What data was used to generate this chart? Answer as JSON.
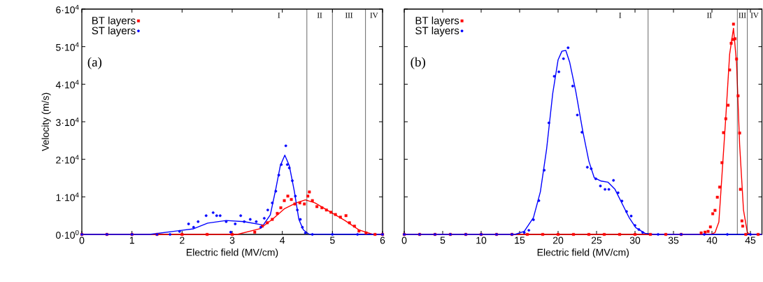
{
  "chart_data": [
    {
      "type": "scatter",
      "xlabel": "Electric field (MV/cm)",
      "ylabel": "Velocity (m/s)",
      "xlim": [
        0,
        6
      ],
      "ylim": [
        0,
        60000
      ],
      "xticks": [
        0,
        1,
        2,
        3,
        4,
        5,
        6
      ],
      "yticks": [
        {
          "value": 0,
          "label": "0·10$^{0}$"
        },
        {
          "value": 10000,
          "label": "1·10$^{4}$"
        },
        {
          "value": 20000,
          "label": "2·10$^{4}$"
        },
        {
          "value": 30000,
          "label": "3·10$^{4}$"
        },
        {
          "value": 40000,
          "label": "4·10$^{4}$"
        },
        {
          "value": 50000,
          "label": "5·10$^{4}$"
        },
        {
          "value": 60000,
          "label": "6·10$^{4}$"
        }
      ],
      "grid": false,
      "legend": "top left",
      "series": [
        {
          "name": "BT layers",
          "color": "#ff0000",
          "marker": "square",
          "x": [
            0,
            0.5,
            1.0,
            1.5,
            2.0,
            2.5,
            3.0,
            3.45,
            3.6,
            3.7,
            3.8,
            3.9,
            3.97,
            4.04,
            4.11,
            4.18,
            4.25,
            4.35,
            4.44,
            4.51,
            4.54,
            4.6,
            4.69,
            4.79,
            4.88,
            4.97,
            5.06,
            5.16,
            5.27,
            5.34,
            5.44,
            5.53,
            5.67,
            5.85,
            6.0
          ],
          "values": [
            0,
            0,
            0,
            0,
            0,
            0,
            0,
            600,
            2200,
            3100,
            4000,
            5600,
            7100,
            9000,
            10200,
            9300,
            8100,
            8400,
            8100,
            10200,
            11300,
            9000,
            7400,
            7100,
            6500,
            5900,
            5300,
            4600,
            5000,
            3100,
            2200,
            900,
            400,
            0,
            0
          ]
        },
        {
          "name": "ST layers",
          "color": "#0000ff",
          "marker": "circle",
          "x": [
            0,
            0.5,
            1.0,
            1.5,
            1.76,
            1.95,
            2.13,
            2.23,
            2.32,
            2.48,
            2.62,
            2.69,
            2.76,
            2.88,
            2.97,
            3.06,
            3.17,
            3.24,
            3.36,
            3.48,
            3.57,
            3.64,
            3.71,
            3.8,
            3.87,
            3.93,
            3.98,
            4.07,
            4.1,
            4.14,
            4.2,
            4.26,
            4.3,
            4.36,
            4.4,
            4.46,
            4.6,
            5.0,
            5.5,
            6.0
          ],
          "values": [
            0,
            0,
            0,
            0,
            0,
            800,
            2800,
            1900,
            3400,
            5000,
            5800,
            5000,
            5000,
            3400,
            600,
            2800,
            5000,
            3400,
            4000,
            3400,
            1900,
            4300,
            6500,
            8400,
            11500,
            15800,
            18600,
            23600,
            18600,
            17700,
            14300,
            10200,
            6500,
            4000,
            1900,
            400,
            0,
            0,
            0,
            0
          ]
        },
        {
          "type": "line",
          "color": "#ff0000",
          "marker": "none",
          "x": [
            0,
            3.1,
            3.55,
            3.8,
            4.04,
            4.28,
            4.46,
            4.65,
            4.97,
            5.25,
            5.53,
            5.81,
            6.0
          ],
          "values": [
            0,
            0,
            1500,
            4000,
            6800,
            8400,
            9200,
            8400,
            5900,
            3700,
            1200,
            0,
            0
          ]
        },
        {
          "type": "line",
          "color": "#0000ff",
          "marker": "none",
          "x": [
            0,
            1.35,
            2.23,
            2.51,
            2.88,
            3.24,
            3.62,
            3.76,
            3.87,
            3.96,
            4.05,
            4.14,
            4.24,
            4.33,
            4.42,
            4.53,
            6.0
          ],
          "values": [
            0,
            0,
            1500,
            3000,
            3700,
            3400,
            2500,
            5200,
            12100,
            18300,
            21100,
            18300,
            11500,
            4000,
            1200,
            100,
            0
          ]
        }
      ],
      "ref_lines": [
        {
          "axis": "x",
          "value": 4.49,
          "color": "#000000"
        },
        {
          "axis": "x",
          "value": 5.0,
          "color": "#000000"
        },
        {
          "axis": "x",
          "value": 5.66,
          "color": "#000000"
        }
      ],
      "annotations": [
        "(a)",
        "I",
        "II",
        "III",
        "IV"
      ]
    },
    {
      "type": "scatter",
      "xlabel": "Electric field (MV/cm)",
      "xlim": [
        0,
        46.5
      ],
      "ylim": [
        0,
        60000
      ],
      "xticks": [
        0,
        5,
        10,
        15,
        20,
        25,
        30,
        35,
        40,
        45
      ],
      "yticks": [
        {
          "value": 0,
          "label": null
        },
        {
          "value": 10000,
          "label": null
        },
        {
          "value": 20000,
          "label": null
        },
        {
          "value": 30000,
          "label": null
        },
        {
          "value": 40000,
          "label": null
        },
        {
          "value": 50000,
          "label": null
        },
        {
          "value": 60000,
          "label": null
        }
      ],
      "tick_labels": "x",
      "grid": false,
      "legend": "top left",
      "series": [
        {
          "name": "BT layers",
          "color": "#ff0000",
          "marker": "square",
          "x": [
            0,
            2,
            4,
            6,
            8,
            10,
            12,
            14,
            16,
            18,
            20,
            22,
            24,
            26,
            28,
            30,
            32,
            34,
            36,
            38.6,
            39.1,
            39.5,
            39.8,
            40.1,
            40.4,
            40.7,
            41.0,
            41.3,
            41.5,
            41.8,
            42.1,
            42.3,
            42.5,
            42.7,
            42.8,
            43.0,
            43.2,
            43.4,
            43.6,
            43.7,
            43.9,
            44.0,
            44.4,
            46
          ],
          "values": [
            0,
            0,
            0,
            0,
            0,
            0,
            0,
            0,
            0,
            0,
            0,
            0,
            0,
            0,
            0,
            0,
            0,
            0,
            0,
            400,
            600,
            800,
            2000,
            5500,
            6400,
            9900,
            12600,
            19100,
            27100,
            30800,
            34400,
            43800,
            50900,
            51900,
            56000,
            52100,
            46700,
            36900,
            27000,
            12000,
            3600,
            2200,
            0,
            0
          ]
        },
        {
          "name": "ST layers",
          "color": "#0000ff",
          "marker": "circle",
          "x": [
            0,
            2,
            4,
            6,
            8,
            10,
            12,
            14,
            15.6,
            16.2,
            16.8,
            17.5,
            18.2,
            18.8,
            19.5,
            20.1,
            20.7,
            21.3,
            21.9,
            22.5,
            23.1,
            23.8,
            24.3,
            24.9,
            25.5,
            26.1,
            26.6,
            27.2,
            27.8,
            28.3,
            28.9,
            29.5,
            30.0,
            30.5,
            31.0,
            33,
            36,
            39,
            42,
            45
          ],
          "values": [
            0,
            0,
            0,
            0,
            0,
            0,
            0,
            0,
            500,
            1100,
            3900,
            9000,
            17100,
            29700,
            42100,
            43300,
            46800,
            49700,
            39500,
            31800,
            27200,
            17900,
            17500,
            14800,
            12900,
            12000,
            12000,
            14400,
            11100,
            8900,
            6100,
            4900,
            2400,
            1300,
            500,
            0,
            0,
            0,
            0,
            0
          ]
        },
        {
          "type": "line",
          "color": "#ff0000",
          "marker": "none",
          "x": [
            0,
            38,
            39.8,
            40.4,
            40.9,
            41.3,
            41.8,
            42.3,
            42.8,
            43.2,
            43.6,
            44.1,
            44.6,
            45.0,
            46.5
          ],
          "values": [
            0,
            0,
            0,
            500,
            3300,
            15700,
            31200,
            48000,
            54900,
            45600,
            23900,
            6500,
            500,
            0,
            0
          ]
        },
        {
          "type": "line",
          "color": "#0000ff",
          "marker": "none",
          "x": [
            0,
            14.4,
            15.6,
            16.8,
            17.7,
            18.5,
            19.3,
            20.0,
            20.5,
            21.0,
            21.5,
            22.3,
            23.2,
            24.0,
            24.7,
            25.6,
            26.5,
            27.4,
            28.3,
            29.2,
            30.1,
            31.3,
            32.5,
            46.5
          ],
          "values": [
            0,
            0,
            800,
            4500,
            11400,
            22600,
            37500,
            46500,
            48800,
            49000,
            45900,
            38100,
            27600,
            19500,
            15100,
            14200,
            13900,
            12000,
            8300,
            4600,
            1800,
            300,
            0,
            0
          ]
        }
      ],
      "ref_lines": [
        {
          "axis": "x",
          "value": 31.7,
          "color": "#000000"
        },
        {
          "axis": "x",
          "value": 43.3,
          "color": "#000000"
        },
        {
          "axis": "x",
          "value": 44.6,
          "color": "#000000"
        }
      ],
      "annotations": [
        "(b)",
        "I",
        "II",
        "III",
        "IV"
      ]
    }
  ]
}
